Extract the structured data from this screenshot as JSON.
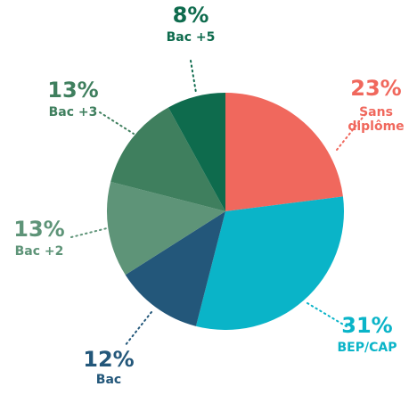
{
  "chart_data": {
    "type": "pie",
    "categories": [
      "Sans diplôme",
      "BEP/CAP",
      "Bac",
      "Bac +2",
      "Bac +3",
      "Bac +5"
    ],
    "values": [
      23,
      31,
      12,
      13,
      13,
      8
    ],
    "value_labels": [
      "23%",
      "31%",
      "12%",
      "13%",
      "13%",
      "8%"
    ],
    "colors": [
      "#f0685d",
      "#0ab4c8",
      "#23577a",
      "#5e9478",
      "#3f7f5e",
      "#0e6b4d"
    ]
  }
}
